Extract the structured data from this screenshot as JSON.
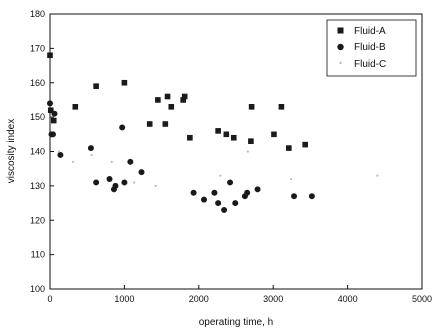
{
  "chart_data": {
    "type": "scatter",
    "title": "",
    "xlabel": "operating time, h",
    "ylabel": "viscosity index",
    "xlim": [
      0,
      5000
    ],
    "ylim": [
      100,
      180
    ],
    "xticks": [
      "0",
      "1000",
      "2000",
      "3000",
      "4000",
      "5000"
    ],
    "yticks": [
      "100",
      "110",
      "120",
      "130",
      "140",
      "150",
      "160",
      "170",
      "180"
    ],
    "grid": false,
    "legend_position": "top-right",
    "series": [
      {
        "name": "Fluid-A",
        "marker": "square",
        "color": "#1a1a1a",
        "points": [
          [
            0,
            168
          ],
          [
            10,
            152
          ],
          [
            50,
            149
          ],
          [
            340,
            153
          ],
          [
            620,
            159
          ],
          [
            1000,
            160
          ],
          [
            1340,
            148
          ],
          [
            1450,
            155
          ],
          [
            1550,
            148
          ],
          [
            1580,
            156
          ],
          [
            1630,
            153
          ],
          [
            1790,
            155
          ],
          [
            1810,
            156
          ],
          [
            1880,
            144
          ],
          [
            2260,
            146
          ],
          [
            2370,
            145
          ],
          [
            2470,
            144
          ],
          [
            2700,
            143
          ],
          [
            2710,
            153
          ],
          [
            3010,
            145
          ],
          [
            3110,
            153
          ],
          [
            3210,
            141
          ],
          [
            3430,
            142
          ]
        ]
      },
      {
        "name": "Fluid-B",
        "marker": "circle",
        "color": "#1a1a1a",
        "points": [
          [
            0,
            154
          ],
          [
            20,
            145
          ],
          [
            40,
            145
          ],
          [
            60,
            151
          ],
          [
            140,
            139
          ],
          [
            550,
            141
          ],
          [
            620,
            131
          ],
          [
            800,
            132
          ],
          [
            860,
            129
          ],
          [
            880,
            130
          ],
          [
            970,
            147
          ],
          [
            1000,
            131
          ],
          [
            1080,
            137
          ],
          [
            1230,
            134
          ],
          [
            1930,
            128
          ],
          [
            2070,
            126
          ],
          [
            2210,
            128
          ],
          [
            2260,
            125
          ],
          [
            2340,
            123
          ],
          [
            2420,
            131
          ],
          [
            2490,
            125
          ],
          [
            2620,
            127
          ],
          [
            2650,
            128
          ],
          [
            2790,
            129
          ],
          [
            3280,
            127
          ],
          [
            3520,
            127
          ]
        ]
      },
      {
        "name": "Fluid-C",
        "marker": "point",
        "color": "#bbbbbb",
        "points": [
          [
            120,
            140
          ],
          [
            310,
            137
          ],
          [
            560,
            139
          ],
          [
            830,
            137
          ],
          [
            1130,
            131
          ],
          [
            1420,
            130
          ],
          [
            2290,
            133
          ],
          [
            2660,
            140
          ],
          [
            3240,
            132
          ],
          [
            4400,
            133
          ]
        ]
      }
    ]
  }
}
